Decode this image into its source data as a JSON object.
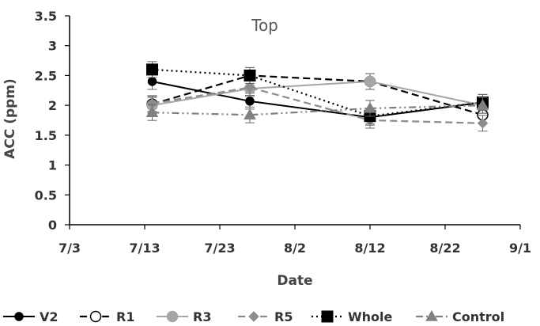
{
  "chart_data": {
    "type": "line",
    "title": "Top",
    "xlabel": "Date",
    "ylabel": "ACC (ppm)",
    "x_ticks": [
      "7/3",
      "7/13",
      "7/23",
      "8/2",
      "8/12",
      "8/22",
      "9/1"
    ],
    "x_tick_values": [
      "2023-07-03",
      "2023-07-13",
      "2023-07-23",
      "2023-08-02",
      "2023-08-12",
      "2023-08-22",
      "2023-09-01"
    ],
    "y_ticks": [
      "0",
      "0.5",
      "1",
      "1.5",
      "2",
      "2.5",
      "3",
      "3.5"
    ],
    "ylim": [
      0,
      3.5
    ],
    "grid": false,
    "legend_position": "bottom",
    "series": [
      {
        "name": "V2",
        "x": [
          "2023-07-14",
          "2023-07-27",
          "2023-08-12",
          "2023-08-27"
        ],
        "y": [
          2.4,
          2.07,
          1.8,
          2.05
        ],
        "color": "#000000",
        "line_style": "solid",
        "marker": "circle",
        "marker_fill": "#000000"
      },
      {
        "name": "R1",
        "x": [
          "2023-07-14",
          "2023-07-27",
          "2023-08-12",
          "2023-08-27"
        ],
        "y": [
          2.02,
          2.5,
          2.4,
          1.84
        ],
        "color": "#000000",
        "line_style": "dashed",
        "marker": "circle",
        "marker_fill": "#ffffff"
      },
      {
        "name": "R3",
        "x": [
          "2023-07-14",
          "2023-07-27",
          "2023-08-12",
          "2023-08-27"
        ],
        "y": [
          2.0,
          2.28,
          2.4,
          2.0
        ],
        "color": "#a6a6a6",
        "line_style": "solid",
        "marker": "circle",
        "marker_fill": "#a6a6a6"
      },
      {
        "name": "R5",
        "x": [
          "2023-07-14",
          "2023-07-27",
          "2023-08-12",
          "2023-08-27"
        ],
        "y": [
          2.03,
          2.3,
          1.75,
          1.7
        ],
        "color": "#8c8c8c",
        "line_style": "dashed",
        "marker": "diamond",
        "marker_fill": "#8c8c8c"
      },
      {
        "name": "Whole",
        "x": [
          "2023-07-14",
          "2023-07-27",
          "2023-08-12",
          "2023-08-27"
        ],
        "y": [
          2.6,
          2.5,
          1.82,
          2.05
        ],
        "color": "#000000",
        "line_style": "dotted",
        "marker": "square",
        "marker_fill": "#000000"
      },
      {
        "name": "Control",
        "x": [
          "2023-07-14",
          "2023-07-27",
          "2023-08-12",
          "2023-08-27"
        ],
        "y": [
          1.88,
          1.84,
          1.95,
          2.0
        ],
        "color": "#808080",
        "line_style": "dashdotdot",
        "marker": "triangle",
        "marker_fill": "#808080"
      }
    ]
  }
}
